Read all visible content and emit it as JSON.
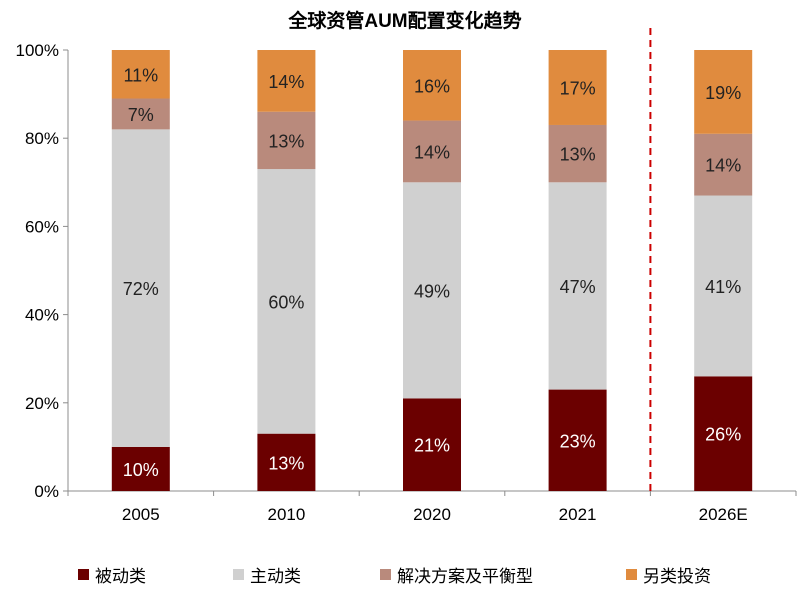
{
  "chart_data": {
    "type": "bar",
    "stacked": true,
    "title": "全球资管AUM配置变化趋势",
    "categories": [
      "2005",
      "2010",
      "2020",
      "2021",
      "2026E"
    ],
    "series": [
      {
        "name": "被动类",
        "color": "#6b0000",
        "values": [
          10,
          13,
          21,
          23,
          26
        ],
        "labels": [
          "10%",
          "13%",
          "21%",
          "23%",
          "26%"
        ]
      },
      {
        "name": "主动类",
        "color": "#d0d0d0",
        "values": [
          72,
          60,
          49,
          47,
          41
        ],
        "labels": [
          "72%",
          "60%",
          "49%",
          "47%",
          "41%"
        ]
      },
      {
        "name": "解决方案及平衡型",
        "color": "#b98a7c",
        "values": [
          7,
          13,
          14,
          13,
          14
        ],
        "labels": [
          "7%",
          "13%",
          "14%",
          "13%",
          "14%"
        ]
      },
      {
        "name": "另类投资",
        "color": "#e08b3e",
        "values": [
          11,
          14,
          16,
          17,
          19
        ],
        "labels": [
          "11%",
          "14%",
          "16%",
          "17%",
          "19%"
        ]
      }
    ],
    "ylim": [
      0,
      100
    ],
    "yticks": [
      "0%",
      "20%",
      "40%",
      "60%",
      "80%",
      "100%"
    ],
    "xlabel": "",
    "ylabel": "",
    "grid": false,
    "legend_position": "bottom",
    "divider_before_category": "2026E",
    "divider_color": "#cc0000"
  }
}
